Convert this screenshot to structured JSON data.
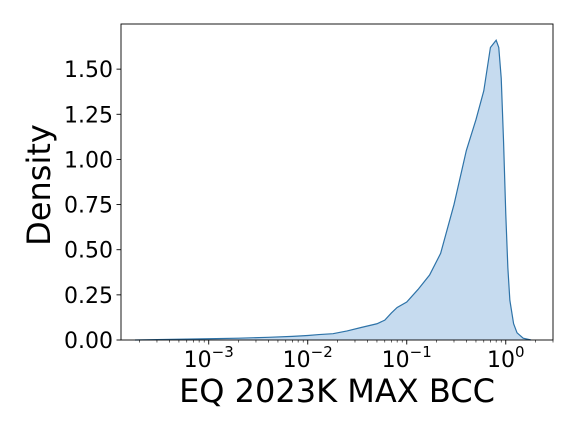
{
  "chart_data": {
    "type": "area",
    "title": "",
    "xlabel": "EQ 2023K MAX BCC",
    "ylabel": "Density",
    "x_scale": "log",
    "xlim": [
      0.00013,
      3.0
    ],
    "ylim": [
      0,
      1.75
    ],
    "grid": false,
    "legend": "none",
    "x_ticks": [
      {
        "value": 0.001,
        "base": "10",
        "exp": "−3"
      },
      {
        "value": 0.01,
        "base": "10",
        "exp": "−2"
      },
      {
        "value": 0.1,
        "base": "10",
        "exp": "−1"
      },
      {
        "value": 1,
        "base": "10",
        "exp": "0"
      }
    ],
    "y_ticks": [
      {
        "value": 0.0,
        "label": "0.00"
      },
      {
        "value": 0.25,
        "label": "0.25"
      },
      {
        "value": 0.5,
        "label": "0.50"
      },
      {
        "value": 0.75,
        "label": "0.75"
      },
      {
        "value": 1.0,
        "label": "1.00"
      },
      {
        "value": 1.25,
        "label": "1.25"
      },
      {
        "value": 1.5,
        "label": "1.50"
      }
    ],
    "series": [
      {
        "fill_color": "#c6dbef",
        "line_color": "#2e73a8",
        "x": [
          0.00018,
          0.0003,
          0.0006,
          0.001,
          0.002,
          0.004,
          0.007,
          0.01,
          0.013,
          0.018,
          0.025,
          0.035,
          0.05,
          0.06,
          0.07,
          0.08,
          0.1,
          0.13,
          0.17,
          0.22,
          0.3,
          0.4,
          0.5,
          0.6,
          0.7,
          0.8,
          0.85,
          0.9,
          0.95,
          1.0,
          1.05,
          1.1,
          1.2,
          1.3,
          1.5,
          1.8
        ],
        "y": [
          0.0,
          0.002,
          0.005,
          0.007,
          0.01,
          0.015,
          0.02,
          0.025,
          0.03,
          0.035,
          0.05,
          0.07,
          0.09,
          0.11,
          0.15,
          0.18,
          0.21,
          0.28,
          0.36,
          0.48,
          0.75,
          1.05,
          1.22,
          1.38,
          1.62,
          1.66,
          1.62,
          1.45,
          1.1,
          0.7,
          0.4,
          0.22,
          0.09,
          0.04,
          0.01,
          0.0
        ]
      }
    ]
  }
}
